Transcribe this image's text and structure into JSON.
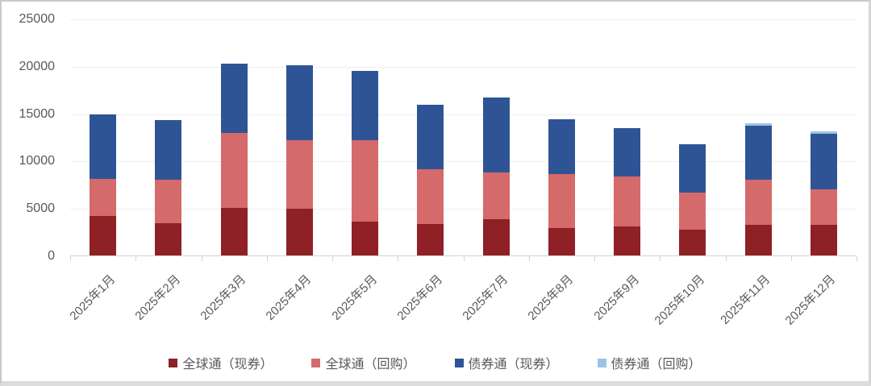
{
  "chart_data": {
    "type": "bar",
    "stacked": true,
    "title": "",
    "categories": [
      "2025年1月",
      "2025年2月",
      "2025年3月",
      "2025年4月",
      "2025年5月",
      "2025年6月",
      "2025年7月",
      "2025年8月",
      "2025年9月",
      "2025年10月",
      "2025年11月",
      "2025年12月"
    ],
    "series": [
      {
        "name": "全球通（现券）",
        "color": "#8E2026",
        "values": [
          4200,
          3400,
          5000,
          4900,
          3600,
          3300,
          3800,
          2900,
          3100,
          2700,
          3200,
          3250
        ]
      },
      {
        "name": "全球通（回购）",
        "color": "#D56A6A",
        "values": [
          3900,
          4600,
          7900,
          7300,
          8600,
          5800,
          5000,
          5700,
          5200,
          3900,
          4800,
          3750
        ]
      },
      {
        "name": "债券通（现券）",
        "color": "#2F5496",
        "values": [
          6800,
          6300,
          7300,
          7900,
          7300,
          6800,
          7900,
          5800,
          5100,
          5100,
          5700,
          5800
        ]
      },
      {
        "name": "债券通（回购）",
        "color": "#9DC3E6",
        "values": [
          0,
          0,
          0,
          0,
          0,
          0,
          0,
          0,
          0,
          0,
          250,
          300
        ]
      }
    ],
    "ylim": [
      0,
      25000
    ],
    "yticks": [
      0,
      5000,
      10000,
      15000,
      20000,
      25000
    ],
    "grid": true,
    "legend_position": "bottom",
    "axis_text_color": "#595959"
  }
}
